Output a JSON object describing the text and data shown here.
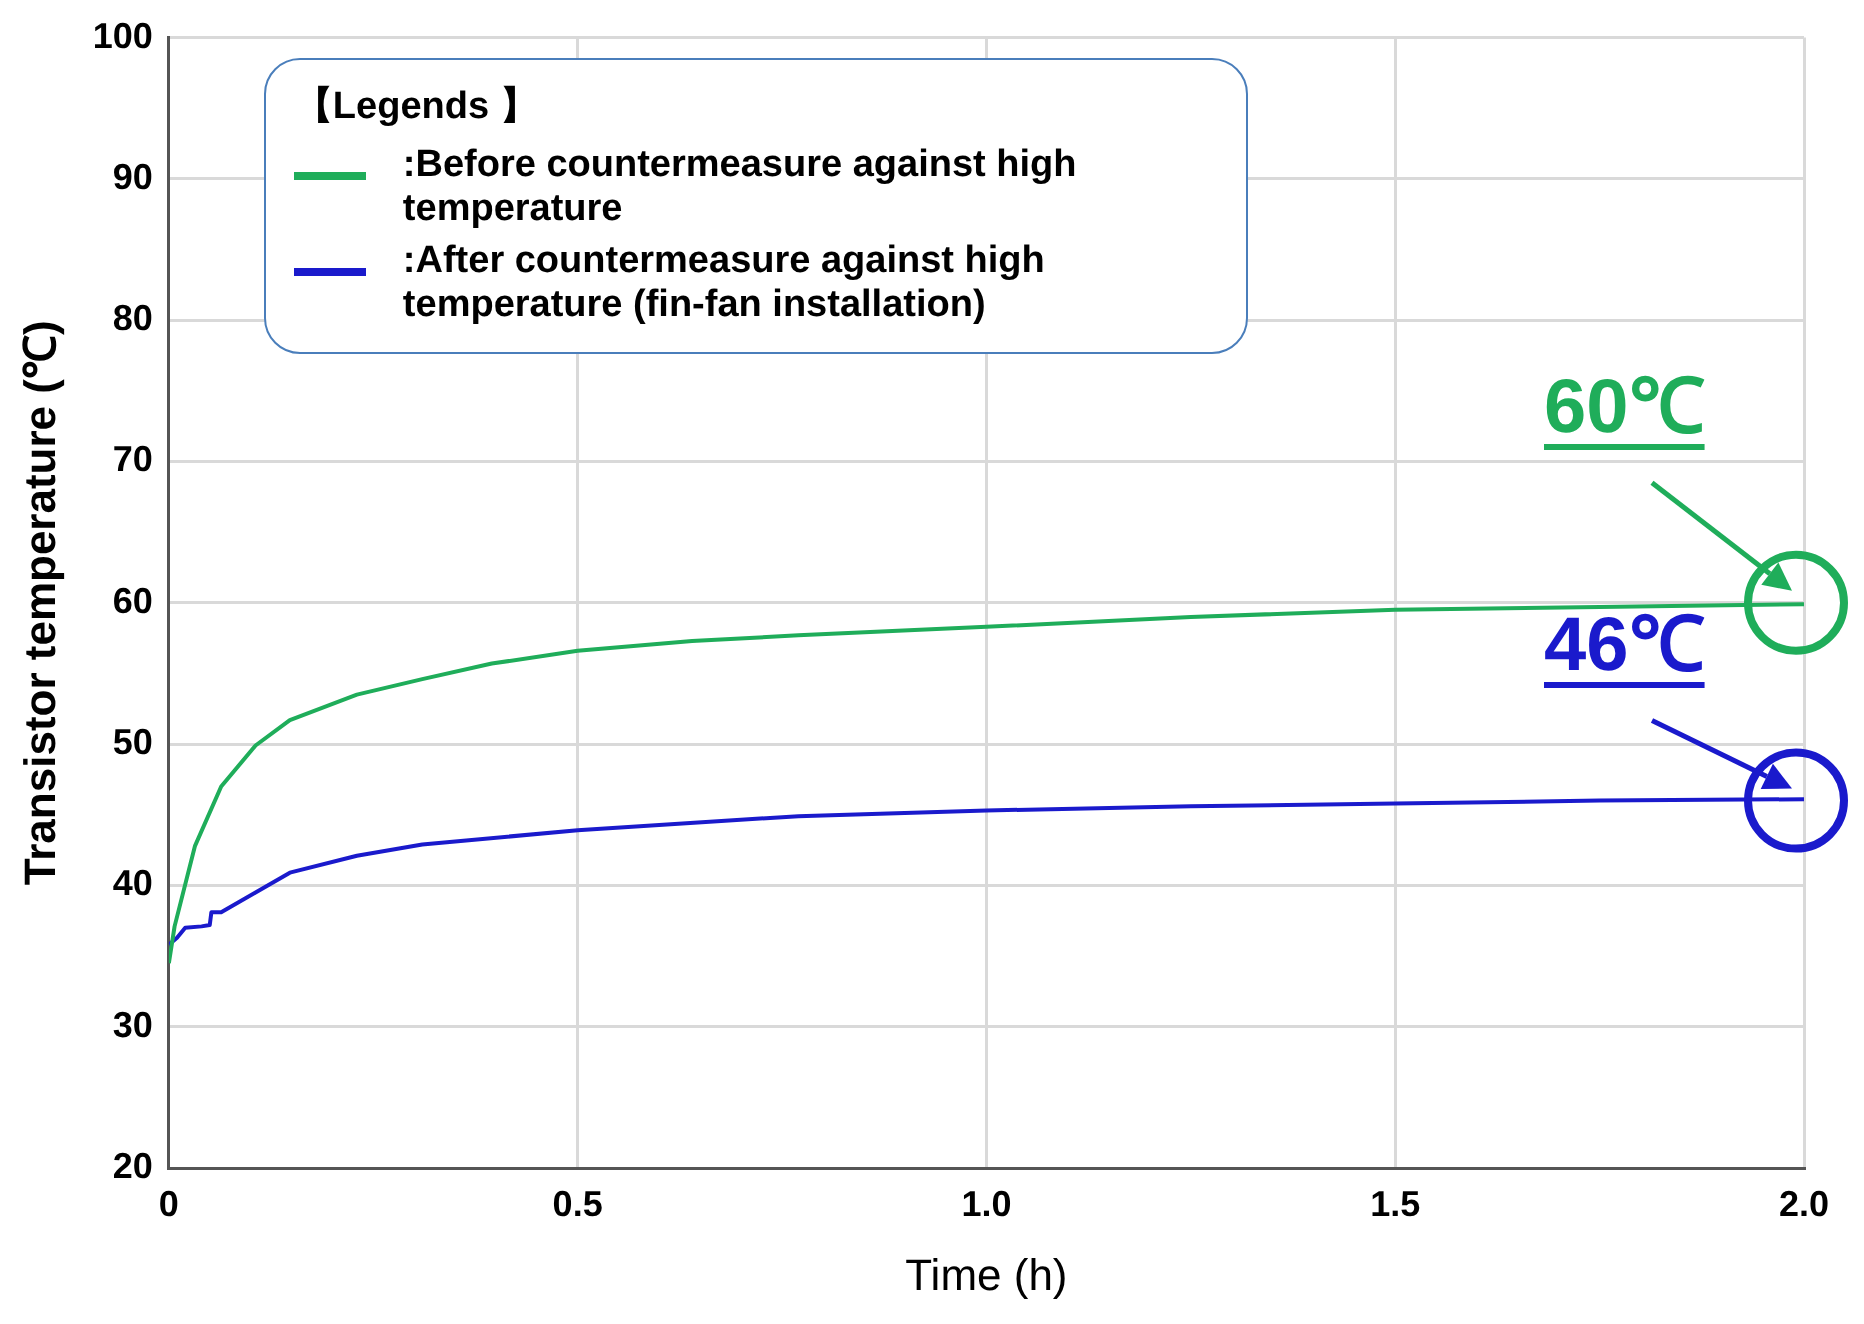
{
  "chart_data": {
    "type": "line",
    "xlabel": "Time (h)",
    "ylabel": "Transistor temperature (℃)",
    "legend_title": "【Legends 】",
    "legend": "top left",
    "grid": true,
    "marker": "none",
    "line_style": "solid",
    "xlim": [
      0,
      2
    ],
    "xticks": [
      0,
      0.5,
      {
        "value": 1,
        "label": "1.0"
      },
      1.5,
      {
        "value": 2,
        "label": "2.0"
      }
    ],
    "ylim": [
      20,
      100
    ],
    "yticks": [
      20,
      30,
      40,
      50,
      60,
      70,
      80,
      90,
      100
    ],
    "series": [
      {
        "name": ":Before countermeasure against high temperature",
        "color": "#1fad5a",
        "x": [
          0,
          0.007,
          0.032,
          0.064,
          0.106,
          0.148,
          0.23,
          0.31,
          0.395,
          0.5,
          0.64,
          0.77,
          1.0,
          1.25,
          1.5,
          1.75,
          2.0
        ],
        "values": [
          34.5,
          37.1,
          42.8,
          47.0,
          49.9,
          51.7,
          53.5,
          54.6,
          55.7,
          56.6,
          57.3,
          57.7,
          58.3,
          59.0,
          59.5,
          59.7,
          59.9
        ]
      },
      {
        "name": ":After countermeasure against high temperature (fin-fan installation)",
        "color": "#1a1acc",
        "x": [
          0,
          0.01,
          0.02,
          0.04,
          0.05,
          0.052,
          0.064,
          0.106,
          0.148,
          0.23,
          0.31,
          0.5,
          0.77,
          1.0,
          1.25,
          1.5,
          1.75,
          2.0
        ],
        "values": [
          35.8,
          36.3,
          37.0,
          37.1,
          37.2,
          38.1,
          38.1,
          39.5,
          40.9,
          42.1,
          42.9,
          43.9,
          44.9,
          45.3,
          45.6,
          45.8,
          46.0,
          46.1
        ]
      }
    ],
    "annotations": [
      {
        "text": "60℃",
        "x": 2.0,
        "y": 60
      },
      {
        "text": "46℃",
        "x": 2.0,
        "y": 46
      }
    ]
  }
}
